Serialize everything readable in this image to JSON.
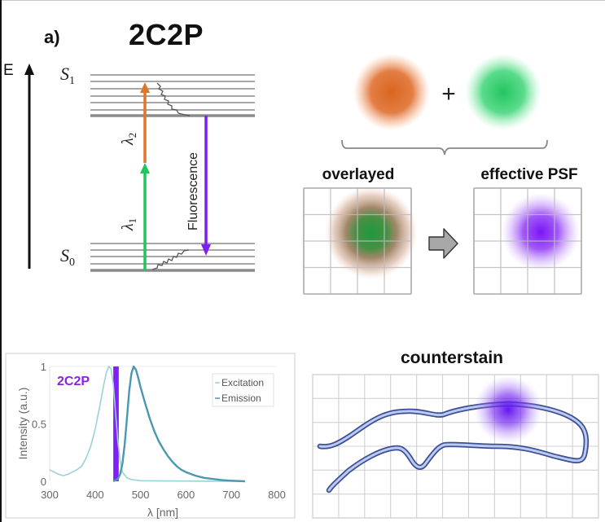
{
  "panel": {
    "label": "a)",
    "title": "2C2P"
  },
  "jablonski": {
    "energy_axis_label": "E",
    "excited_state": {
      "symbol": "S",
      "subscript": "1"
    },
    "ground_state": {
      "symbol": "S",
      "subscript": "0"
    },
    "excitation_1": {
      "symbol": "λ",
      "subscript": "1",
      "color": "#22c55e"
    },
    "excitation_2": {
      "symbol": "λ",
      "subscript": "2",
      "color": "#e0762a"
    },
    "fluorescence": {
      "label": "Fluorescence",
      "color": "#7c1ff0"
    },
    "level_color": "#8a8a8a"
  },
  "psf": {
    "plus_sign": "+",
    "beam_1_color": "#d9651e",
    "beam_2_color": "#22c55e",
    "overlayed_label": "overlayed",
    "effective_label": "effective PSF",
    "effective_color": "#7a14f5",
    "grid_cells": 4
  },
  "counterstain": {
    "title": "counterstain",
    "grid_columns": 11,
    "grid_rows": 6,
    "structure_color": "#8fa8e0",
    "spot_color": "#6d10f0"
  },
  "chart_data": {
    "type": "line",
    "title": "",
    "xlabel": "λ [nm]",
    "ylabel": "Intensity (a.u.)",
    "xlim": [
      300,
      800
    ],
    "ylim": [
      0,
      1
    ],
    "x_ticks": [
      "300",
      "400",
      "500",
      "600",
      "700",
      "800"
    ],
    "y_ticks": [
      "0",
      "0.5",
      "1"
    ],
    "grid": false,
    "legend": {
      "position": "top-right",
      "entries": [
        "Excitation",
        "Emission"
      ]
    },
    "annotation": {
      "text": "2C2P",
      "band_nm": [
        440,
        452
      ],
      "color": "#8a22e6"
    },
    "series": [
      {
        "name": "Excitation",
        "color": "#9cd0dc",
        "x": [
          300,
          310,
          320,
          330,
          340,
          350,
          360,
          370,
          380,
          390,
          400,
          410,
          420,
          425,
          430,
          435,
          440,
          445,
          450,
          455,
          460,
          470,
          480,
          490,
          500,
          550,
          600,
          650,
          700,
          730
        ],
        "y": [
          0.1,
          0.08,
          0.06,
          0.05,
          0.06,
          0.08,
          0.1,
          0.13,
          0.2,
          0.3,
          0.45,
          0.65,
          0.86,
          0.95,
          1.0,
          0.98,
          0.85,
          0.6,
          0.35,
          0.18,
          0.08,
          0.03,
          0.015,
          0.01,
          0.005,
          0.003,
          0.002,
          0.001,
          0.0,
          0.0
        ]
      },
      {
        "name": "Emission",
        "color": "#4a98b0",
        "x": [
          440,
          450,
          455,
          460,
          465,
          470,
          475,
          480,
          485,
          490,
          495,
          500,
          510,
          520,
          530,
          540,
          550,
          560,
          570,
          580,
          590,
          600,
          620,
          640,
          660,
          680,
          700,
          730
        ],
        "y": [
          0.0,
          0.02,
          0.06,
          0.15,
          0.32,
          0.55,
          0.78,
          0.94,
          1.0,
          0.97,
          0.9,
          0.82,
          0.68,
          0.55,
          0.44,
          0.35,
          0.28,
          0.22,
          0.17,
          0.13,
          0.1,
          0.08,
          0.05,
          0.03,
          0.02,
          0.01,
          0.005,
          0.0
        ]
      }
    ]
  }
}
